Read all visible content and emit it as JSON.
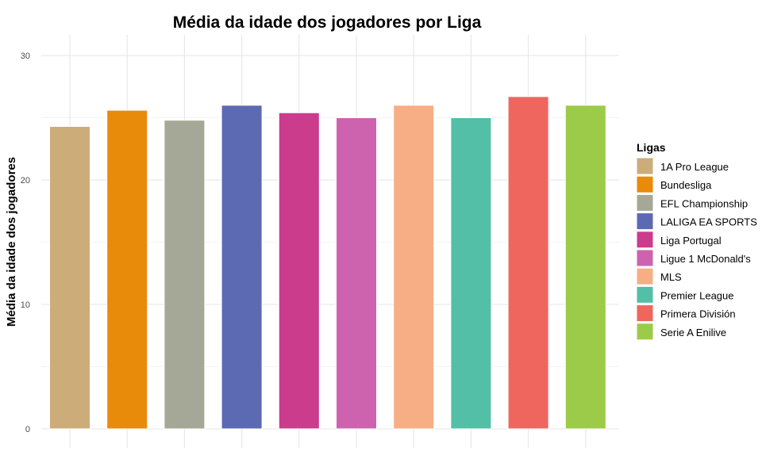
{
  "chart_data": {
    "type": "bar",
    "title": "Média da idade dos jogadores por Liga",
    "xlabel": "",
    "ylabel": "Média da idade dos jogadores",
    "ylim": [
      0,
      31
    ],
    "yticks": [
      0,
      10,
      20,
      30
    ],
    "grid": true,
    "legend": {
      "title": "Ligas",
      "placement": "right"
    },
    "categories": [
      "1A Pro League",
      "Bundesliga",
      "EFL Championship",
      "LALIGA EA SPORTS",
      "Liga Portugal",
      "Ligue 1 McDonald's",
      "MLS",
      "Premier League",
      "Primera División",
      "Serie A Enilive"
    ],
    "values": [
      24.3,
      25.6,
      24.8,
      26.0,
      25.4,
      25.0,
      26.0,
      25.0,
      26.7,
      26.0
    ],
    "colors": [
      "#CCAC79",
      "#E88A0A",
      "#A6A897",
      "#5C6AB3",
      "#CB3C8D",
      "#CD63AF",
      "#F7AE85",
      "#52BFA6",
      "#EE665D",
      "#9BCB48"
    ]
  }
}
